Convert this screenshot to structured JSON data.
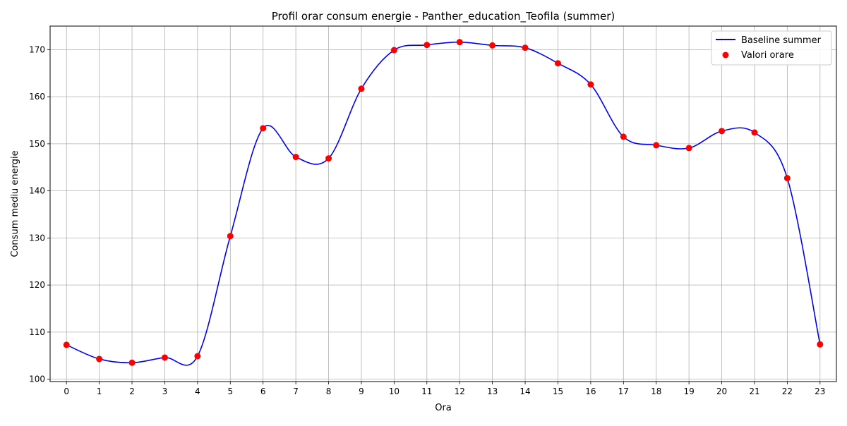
{
  "chart_data": {
    "type": "line",
    "title": "Profil orar consum energie - Panther_education_Teofila (summer)",
    "xlabel": "Ora",
    "ylabel": "Consum mediu energie",
    "categories": [
      0,
      1,
      2,
      3,
      4,
      5,
      6,
      7,
      8,
      9,
      10,
      11,
      12,
      13,
      14,
      15,
      16,
      17,
      18,
      19,
      20,
      21,
      22,
      23
    ],
    "series": [
      {
        "name": "Baseline summer",
        "kind": "line",
        "smooth": true,
        "color": "#0000ff",
        "values": [
          107.3,
          104.3,
          103.5,
          104.6,
          104.9,
          130.4,
          153.3,
          147.2,
          146.9,
          161.7,
          169.9,
          171.0,
          171.6,
          170.9,
          170.4,
          167.1,
          162.6,
          151.5,
          149.7,
          149.1,
          152.7,
          152.4,
          142.7,
          107.4
        ]
      },
      {
        "name": "Valori orare",
        "kind": "scatter",
        "color": "#ff0000",
        "values": [
          107.3,
          104.3,
          103.5,
          104.6,
          104.9,
          130.4,
          153.3,
          147.2,
          146.9,
          161.7,
          169.9,
          171.0,
          171.6,
          170.9,
          170.4,
          167.1,
          162.6,
          151.5,
          149.7,
          149.1,
          152.7,
          152.4,
          142.7,
          107.4
        ]
      }
    ],
    "xlim": [
      -0.5,
      23.5
    ],
    "ylim": [
      99.5,
      175.0
    ],
    "yticks": [
      100,
      110,
      120,
      130,
      140,
      150,
      160,
      170
    ],
    "grid": true,
    "legend_position": "top-right"
  }
}
